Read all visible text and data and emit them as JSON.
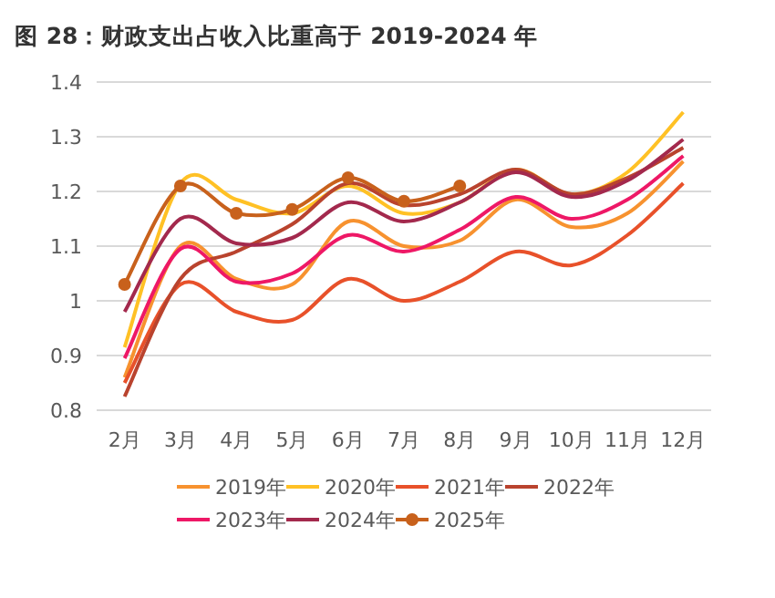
{
  "chart_data": {
    "type": "line",
    "title": "图 28：财政支出占收入比重高于 2019-2024 年",
    "categories": [
      "2月",
      "3月",
      "4月",
      "5月",
      "6月",
      "7月",
      "8月",
      "9月",
      "10月",
      "11月",
      "12月"
    ],
    "series": [
      {
        "name": "2019年",
        "color": "#f7922f",
        "values": [
          0.86,
          1.1,
          1.04,
          1.03,
          1.145,
          1.1,
          1.11,
          1.185,
          1.135,
          1.16,
          1.255
        ]
      },
      {
        "name": "2020年",
        "color": "#ffc125",
        "values": [
          0.915,
          1.215,
          1.185,
          1.16,
          1.21,
          1.16,
          1.18,
          1.24,
          1.195,
          1.235,
          1.345
        ]
      },
      {
        "name": "2021年",
        "color": "#e8512a",
        "values": [
          0.85,
          1.03,
          0.98,
          0.965,
          1.04,
          1.0,
          1.035,
          1.09,
          1.065,
          1.12,
          1.215
        ]
      },
      {
        "name": "2022年",
        "color": "#b9432e",
        "values": [
          0.825,
          1.04,
          1.09,
          1.14,
          1.215,
          1.175,
          1.195,
          1.24,
          1.195,
          1.225,
          1.28
        ]
      },
      {
        "name": "2023年",
        "color": "#ee1866",
        "values": [
          0.895,
          1.095,
          1.035,
          1.05,
          1.12,
          1.09,
          1.13,
          1.19,
          1.15,
          1.185,
          1.265
        ]
      },
      {
        "name": "2024年",
        "color": "#a3294d",
        "values": [
          0.98,
          1.15,
          1.105,
          1.115,
          1.18,
          1.145,
          1.18,
          1.235,
          1.19,
          1.22,
          1.295
        ]
      },
      {
        "name": "2025年",
        "color": "#c8611c",
        "marker": "circle",
        "values": [
          1.03,
          1.21,
          1.16,
          1.167,
          1.225,
          1.182,
          1.21,
          null,
          null,
          null,
          null
        ]
      }
    ],
    "ylim": [
      0.8,
      1.4
    ],
    "yticks": [
      0.8,
      0.9,
      {
        "value": 1,
        "label": "1"
      },
      1.1,
      1.2,
      1.3,
      1.4
    ],
    "grid": "y",
    "legend": "bottom"
  }
}
